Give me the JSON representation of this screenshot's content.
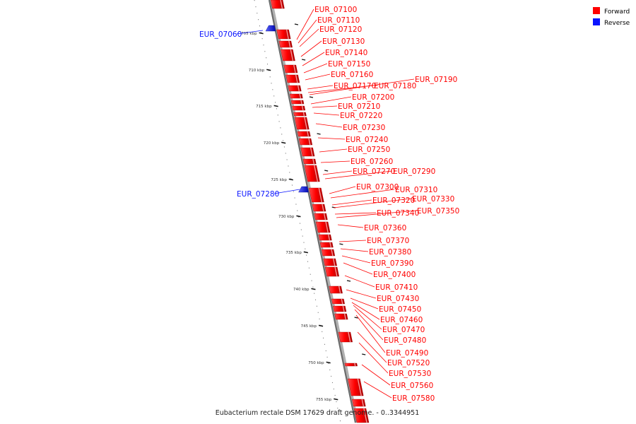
{
  "title": "Eubacterium rectale DSM 17629 draft genome. - 0..3344951",
  "legend": [
    {
      "label": "Forward",
      "color": "#ff0000"
    },
    {
      "label": "Reverse",
      "color": "#0a14ff"
    }
  ],
  "ticks": [
    "705 kbp",
    "710 kbp",
    "715 kbp",
    "720 kbp",
    "725 kbp",
    "730 kbp",
    "735 kbp",
    "740 kbp",
    "745 kbp",
    "750 kbp",
    "755 kbp"
  ],
  "genes": [
    {
      "label": "EUR_07060",
      "strand": "reverse"
    },
    {
      "label": "EUR_07100",
      "strand": "forward"
    },
    {
      "label": "EUR_07110",
      "strand": "forward"
    },
    {
      "label": "EUR_07120",
      "strand": "forward"
    },
    {
      "label": "EUR_07130",
      "strand": "forward"
    },
    {
      "label": "EUR_07140",
      "strand": "forward"
    },
    {
      "label": "EUR_07150",
      "strand": "forward"
    },
    {
      "label": "EUR_07160",
      "strand": "forward"
    },
    {
      "label": "EUR_07170",
      "strand": "forward"
    },
    {
      "label": "EUR_07180",
      "strand": "forward"
    },
    {
      "label": "EUR_07190",
      "strand": "forward"
    },
    {
      "label": "EUR_07200",
      "strand": "forward"
    },
    {
      "label": "EUR_07210",
      "strand": "forward"
    },
    {
      "label": "EUR_07220",
      "strand": "forward"
    },
    {
      "label": "EUR_07230",
      "strand": "forward"
    },
    {
      "label": "EUR_07240",
      "strand": "forward"
    },
    {
      "label": "EUR_07250",
      "strand": "forward"
    },
    {
      "label": "EUR_07260",
      "strand": "forward"
    },
    {
      "label": "EUR_07270",
      "strand": "forward"
    },
    {
      "label": "EUR_07290",
      "strand": "forward"
    },
    {
      "label": "EUR_07280",
      "strand": "reverse"
    },
    {
      "label": "EUR_07300",
      "strand": "forward"
    },
    {
      "label": "EUR_07310",
      "strand": "forward"
    },
    {
      "label": "EUR_07320",
      "strand": "forward"
    },
    {
      "label": "EUR_07330",
      "strand": "forward"
    },
    {
      "label": "EUR_07340",
      "strand": "forward"
    },
    {
      "label": "EUR_07350",
      "strand": "forward"
    },
    {
      "label": "EUR_07360",
      "strand": "forward"
    },
    {
      "label": "EUR_07370",
      "strand": "forward"
    },
    {
      "label": "EUR_07380",
      "strand": "forward"
    },
    {
      "label": "EUR_07390",
      "strand": "forward"
    },
    {
      "label": "EUR_07400",
      "strand": "forward"
    },
    {
      "label": "EUR_07410",
      "strand": "forward"
    },
    {
      "label": "EUR_07430",
      "strand": "forward"
    },
    {
      "label": "EUR_07450",
      "strand": "forward"
    },
    {
      "label": "EUR_07460",
      "strand": "forward"
    },
    {
      "label": "EUR_07470",
      "strand": "forward"
    },
    {
      "label": "EUR_07480",
      "strand": "forward"
    },
    {
      "label": "EUR_07490",
      "strand": "forward"
    },
    {
      "label": "EUR_07520",
      "strand": "forward"
    },
    {
      "label": "EUR_07530",
      "strand": "forward"
    },
    {
      "label": "EUR_07560",
      "strand": "forward"
    },
    {
      "label": "EUR_07580",
      "strand": "forward"
    }
  ]
}
